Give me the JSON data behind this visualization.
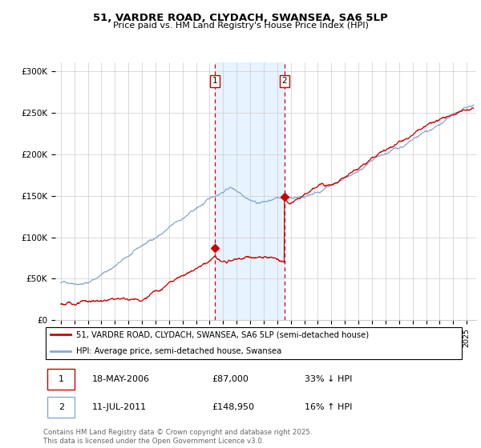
{
  "title1": "51, VARDRE ROAD, CLYDACH, SWANSEA, SA6 5LP",
  "title2": "Price paid vs. HM Land Registry's House Price Index (HPI)",
  "ylabel_ticks": [
    "£0",
    "£50K",
    "£100K",
    "£150K",
    "£200K",
    "£250K",
    "£300K"
  ],
  "ytick_values": [
    0,
    50000,
    100000,
    150000,
    200000,
    250000,
    300000
  ],
  "ylim": [
    0,
    310000
  ],
  "year_start": 1995,
  "year_end": 2025,
  "purchase1_date": 2006.38,
  "purchase1_price": 87000,
  "purchase2_date": 2011.53,
  "purchase2_price": 148950,
  "line1_color": "#cc0000",
  "line2_color": "#88aacc",
  "shade_color": "#ddeeff",
  "vline_color": "#cc0000",
  "grid_color": "#cccccc",
  "legend1_label": "51, VARDRE ROAD, CLYDACH, SWANSEA, SA6 5LP (semi-detached house)",
  "legend2_label": "HPI: Average price, semi-detached house, Swansea",
  "purchase1_text": "18-MAY-2006",
  "purchase1_amount": "£87,000",
  "purchase1_hpi": "33% ↓ HPI",
  "purchase2_text": "11-JUL-2011",
  "purchase2_amount": "£148,950",
  "purchase2_hpi": "16% ↑ HPI",
  "box1_color": "#cc0000",
  "box2_color": "#88aacc",
  "footer": "Contains HM Land Registry data © Crown copyright and database right 2025.\nThis data is licensed under the Open Government Licence v3.0."
}
